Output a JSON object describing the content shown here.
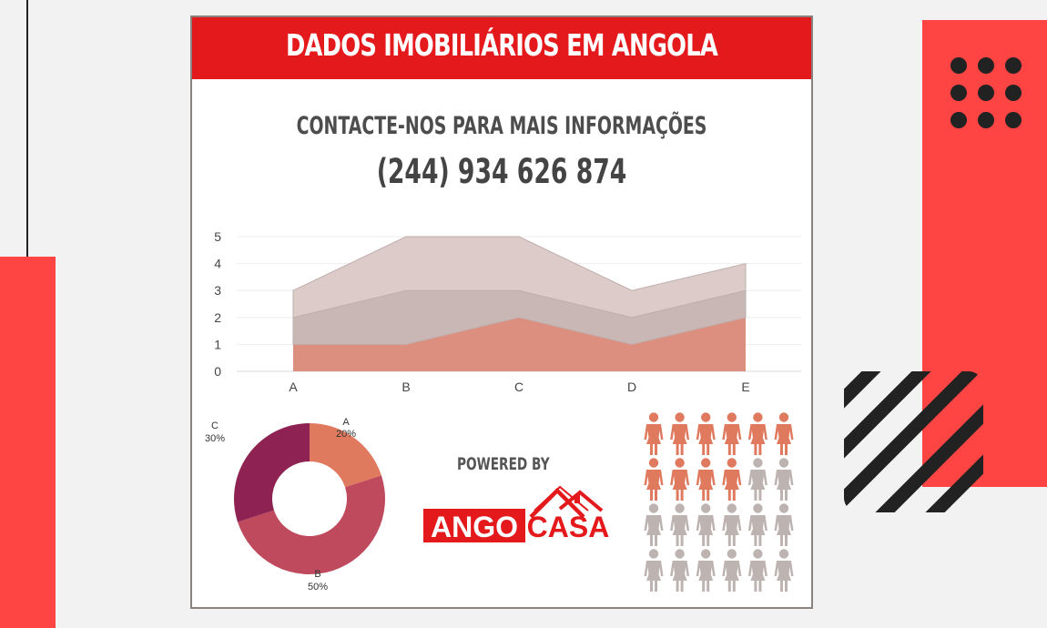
{
  "header": {
    "title": "DADOS IMOBILIÁRIOS EM ANGOLA"
  },
  "contact": {
    "text": "CONTACTE-NOS PARA MAIS INFORMAÇÕES",
    "phone": "(244) 934 626 874"
  },
  "powered_by": "POWERED BY",
  "logo": {
    "part1": "ANGO",
    "part2": "CASA"
  },
  "colors": {
    "brand_red": "#e3191c",
    "accent_red": "#ff4444",
    "icon_active": "#e07a5f",
    "icon_inactive": "#bdb3b0"
  },
  "chart_data": [
    {
      "type": "area",
      "stacked": true,
      "categories": [
        "A",
        "B",
        "C",
        "D",
        "E"
      ],
      "series": [
        {
          "values": [
            1,
            1,
            2,
            1,
            2
          ],
          "color": "#dc8f7e"
        },
        {
          "values": [
            1,
            2,
            1,
            1,
            1
          ],
          "color": "#c9b7b5"
        },
        {
          "values": [
            1,
            2,
            2,
            1,
            1
          ],
          "color": "#dccbc9"
        }
      ],
      "ylim": [
        0,
        5
      ],
      "yticks": [
        0,
        1,
        2,
        3,
        4,
        5
      ],
      "grid": true
    },
    {
      "type": "pie",
      "donut": true,
      "slices": [
        {
          "label": "A",
          "value": 20,
          "value_label": "20%",
          "color": "#e07a5f"
        },
        {
          "label": "B",
          "value": 50,
          "value_label": "50%",
          "color": "#bf4a5e"
        },
        {
          "label": "C",
          "value": 30,
          "value_label": "30%",
          "color": "#8e2252"
        }
      ]
    },
    {
      "type": "pictogram",
      "total": 24,
      "highlighted": 10
    }
  ]
}
